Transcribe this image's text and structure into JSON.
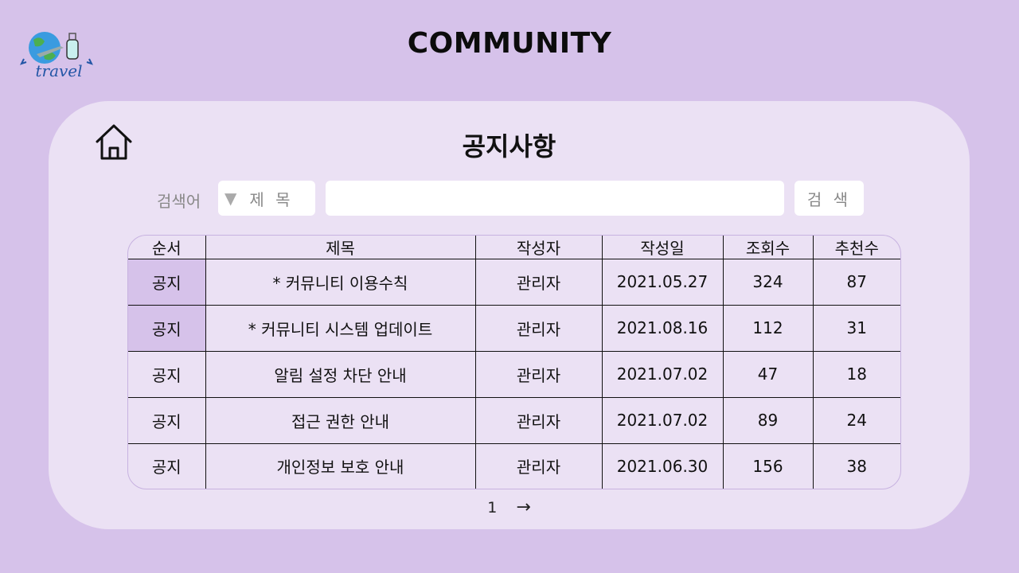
{
  "header": {
    "title": "COMMUNITY",
    "logo_icon": "travel-globe-logo"
  },
  "panel": {
    "title": "공지사항",
    "home_icon": "home-icon"
  },
  "search": {
    "label": "검색어",
    "select_value": "제 목",
    "input_value": "",
    "input_placeholder": "",
    "button_label": "검 색"
  },
  "table": {
    "headers": [
      "순서",
      "제목",
      "작성자",
      "작성일",
      "조회수",
      "추천수"
    ],
    "rows": [
      {
        "order": "공지",
        "title": "* 커뮤니티 이용수칙",
        "author": "관리자",
        "date": "2021.05.27",
        "views": "324",
        "likes": "87",
        "pinned": true
      },
      {
        "order": "공지",
        "title": "* 커뮤니티 시스템 업데이트",
        "author": "관리자",
        "date": "2021.08.16",
        "views": "112",
        "likes": "31",
        "pinned": true
      },
      {
        "order": "공지",
        "title": "알림 설정 차단 안내",
        "author": "관리자",
        "date": "2021.07.02",
        "views": "47",
        "likes": "18",
        "pinned": false
      },
      {
        "order": "공지",
        "title": "접근 권한 안내",
        "author": "관리자",
        "date": "2021.07.02",
        "views": "89",
        "likes": "24",
        "pinned": false
      },
      {
        "order": "공지",
        "title": "개인정보 보호 안내",
        "author": "관리자",
        "date": "2021.06.30",
        "views": "156",
        "likes": "38",
        "pinned": false
      }
    ]
  },
  "pagination": {
    "current_page": "1",
    "next_icon": "arrow-right-icon",
    "next_symbol": "→"
  },
  "colors": {
    "background": "#d6c2ea",
    "panel": "#ebe1f4",
    "pinned_cell": "#d6c2ea",
    "logo_text": "#2356a6"
  }
}
